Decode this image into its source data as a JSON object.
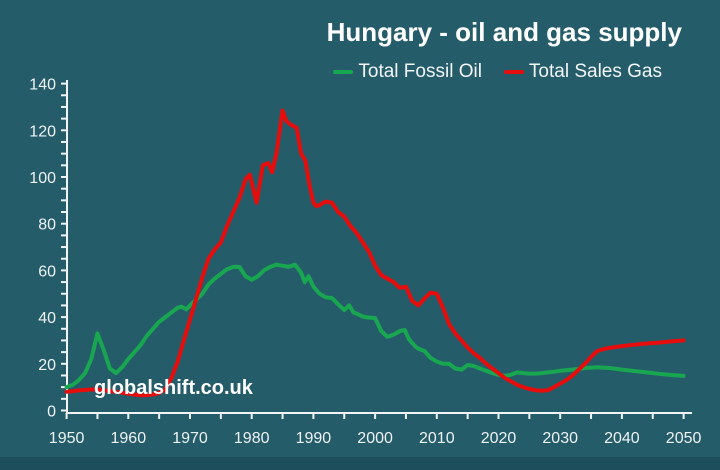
{
  "header": {
    "title": "Hungary - oil and gas supply"
  },
  "watermark": {
    "text": "globalshift.co.uk"
  },
  "colors": {
    "background": "#255c6a",
    "bottom_band": "#1d4e5c",
    "axis": "#f2f5f5",
    "text": "#ffffff",
    "green": "#18a750",
    "red": "#e60d0d"
  },
  "chart_data": {
    "type": "line",
    "title": "Hungary - oil and gas supply",
    "xlabel": "",
    "ylabel": "",
    "xlim": [
      1950,
      2050
    ],
    "ylim": [
      0,
      140
    ],
    "x_ticks": [
      1950,
      1960,
      1970,
      1980,
      1990,
      2000,
      2010,
      2020,
      2030,
      2040,
      2050
    ],
    "x_minor_step": 5,
    "y_ticks": [
      0,
      20,
      40,
      60,
      80,
      100,
      120,
      140
    ],
    "y_minor_step": 5,
    "grid": false,
    "legend_position": "top-right",
    "series": [
      {
        "name": "Total Fossil Oil",
        "color": "#18a750",
        "points": [
          [
            1950,
            10
          ],
          [
            1951,
            11
          ],
          [
            1952,
            13
          ],
          [
            1953,
            16
          ],
          [
            1954,
            22
          ],
          [
            1955,
            33
          ],
          [
            1956,
            26
          ],
          [
            1957,
            18
          ],
          [
            1958,
            16
          ],
          [
            1959,
            18.5
          ],
          [
            1960,
            22
          ],
          [
            1961,
            25
          ],
          [
            1962,
            28
          ],
          [
            1963,
            32
          ],
          [
            1964,
            35
          ],
          [
            1965,
            38
          ],
          [
            1966,
            40
          ],
          [
            1967,
            42
          ],
          [
            1968,
            44
          ],
          [
            1968.6,
            44.5
          ],
          [
            1969.4,
            43.3
          ],
          [
            1970,
            45
          ],
          [
            1971,
            47.5
          ],
          [
            1972,
            50
          ],
          [
            1973,
            54
          ],
          [
            1974,
            56.5
          ],
          [
            1975,
            58.5
          ],
          [
            1976,
            60.5
          ],
          [
            1977,
            61.5
          ],
          [
            1978,
            61.5
          ],
          [
            1979,
            57.5
          ],
          [
            1980,
            56
          ],
          [
            1981,
            57.5
          ],
          [
            1982,
            60
          ],
          [
            1983,
            61.5
          ],
          [
            1984,
            62.5
          ],
          [
            1985,
            62
          ],
          [
            1986,
            61.5
          ],
          [
            1987,
            62.5
          ],
          [
            1988,
            59
          ],
          [
            1988.6,
            55
          ],
          [
            1989.2,
            57.5
          ],
          [
            1990,
            53
          ],
          [
            1991,
            50
          ],
          [
            1992,
            48.5
          ],
          [
            1993,
            48.2
          ],
          [
            1994,
            45.5
          ],
          [
            1995,
            43
          ],
          [
            1995.8,
            45
          ],
          [
            1996.5,
            42
          ],
          [
            1997,
            41.5
          ],
          [
            1998,
            40.2
          ],
          [
            1999,
            39.8
          ],
          [
            2000,
            39.6
          ],
          [
            2001,
            34
          ],
          [
            2002,
            31.5
          ],
          [
            2003,
            32.5
          ],
          [
            2004,
            34
          ],
          [
            2004.8,
            34.5
          ],
          [
            2005.5,
            30.5
          ],
          [
            2006.5,
            27.5
          ],
          [
            2007,
            26.5
          ],
          [
            2008,
            25.5
          ],
          [
            2009,
            22.5
          ],
          [
            2010,
            21
          ],
          [
            2011,
            20
          ],
          [
            2012,
            20
          ],
          [
            2013,
            18
          ],
          [
            2014,
            17.5
          ],
          [
            2015,
            19.5
          ],
          [
            2016,
            19
          ],
          [
            2017,
            18
          ],
          [
            2018,
            17
          ],
          [
            2019,
            16
          ],
          [
            2020,
            15.3
          ],
          [
            2021,
            14.8
          ],
          [
            2022,
            15.3
          ],
          [
            2023,
            16.3
          ],
          [
            2024,
            16
          ],
          [
            2025,
            15.8
          ],
          [
            2026,
            15.8
          ],
          [
            2027,
            16
          ],
          [
            2028,
            16.3
          ],
          [
            2029,
            16.6
          ],
          [
            2030,
            17
          ],
          [
            2032,
            17.5
          ],
          [
            2034,
            18.2
          ],
          [
            2036,
            18.5
          ],
          [
            2038,
            18.2
          ],
          [
            2040,
            17.5
          ],
          [
            2042,
            16.9
          ],
          [
            2044,
            16.3
          ],
          [
            2046,
            15.7
          ],
          [
            2048,
            15.2
          ],
          [
            2050,
            14.8
          ]
        ]
      },
      {
        "name": "Total Sales Gas",
        "color": "#e60d0d",
        "points": [
          [
            1950,
            8
          ],
          [
            1951,
            8.3
          ],
          [
            1952,
            8.6
          ],
          [
            1953,
            8.8
          ],
          [
            1954,
            9
          ],
          [
            1955,
            9
          ],
          [
            1956,
            8.7
          ],
          [
            1957,
            8.3
          ],
          [
            1958,
            8
          ],
          [
            1959,
            7.6
          ],
          [
            1960,
            7.2
          ],
          [
            1961,
            6.8
          ],
          [
            1962,
            6.5
          ],
          [
            1963,
            6.6
          ],
          [
            1964,
            6.9
          ],
          [
            1965,
            7.5
          ],
          [
            1966,
            9
          ],
          [
            1967,
            14
          ],
          [
            1968,
            21
          ],
          [
            1969,
            30
          ],
          [
            1970,
            39
          ],
          [
            1971,
            48
          ],
          [
            1972,
            57
          ],
          [
            1973,
            65
          ],
          [
            1974,
            69
          ],
          [
            1975,
            72
          ],
          [
            1976,
            79
          ],
          [
            1977,
            85
          ],
          [
            1978,
            91
          ],
          [
            1979,
            99
          ],
          [
            1979.7,
            101
          ],
          [
            1980.8,
            89
          ],
          [
            1981.8,
            105
          ],
          [
            1982.7,
            106
          ],
          [
            1983.3,
            102
          ],
          [
            1984,
            110
          ],
          [
            1985,
            128.5
          ],
          [
            1985.6,
            124
          ],
          [
            1986.3,
            122.5
          ],
          [
            1987.3,
            121
          ],
          [
            1988,
            110
          ],
          [
            1988.7,
            107
          ],
          [
            1989.4,
            96
          ],
          [
            1990,
            89
          ],
          [
            1990.5,
            87.5
          ],
          [
            1991,
            88
          ],
          [
            1992,
            89.5
          ],
          [
            1993,
            89
          ],
          [
            1994,
            85
          ],
          [
            1995,
            83
          ],
          [
            1996,
            79
          ],
          [
            1997,
            76
          ],
          [
            1998,
            72
          ],
          [
            1999,
            68
          ],
          [
            2000,
            62
          ],
          [
            2001,
            58
          ],
          [
            2002,
            56.5
          ],
          [
            2003,
            55
          ],
          [
            2004,
            52.5
          ],
          [
            2005,
            53
          ],
          [
            2006,
            47
          ],
          [
            2007,
            45
          ],
          [
            2008,
            48
          ],
          [
            2009,
            50.5
          ],
          [
            2010,
            50
          ],
          [
            2011,
            44
          ],
          [
            2012,
            37
          ],
          [
            2013,
            33
          ],
          [
            2014,
            30
          ],
          [
            2015,
            27
          ],
          [
            2016,
            24.5
          ],
          [
            2017,
            22.5
          ],
          [
            2018,
            20
          ],
          [
            2019,
            18
          ],
          [
            2020,
            16
          ],
          [
            2021,
            14
          ],
          [
            2022,
            12.5
          ],
          [
            2023,
            11
          ],
          [
            2024,
            10
          ],
          [
            2025,
            9.2
          ],
          [
            2026,
            8.7
          ],
          [
            2027,
            8.5
          ],
          [
            2028,
            8.7
          ],
          [
            2029,
            10
          ],
          [
            2030,
            11.5
          ],
          [
            2031,
            13
          ],
          [
            2032,
            15
          ],
          [
            2033,
            17.5
          ],
          [
            2034,
            20
          ],
          [
            2035,
            23
          ],
          [
            2036,
            25.5
          ],
          [
            2037,
            26.3
          ],
          [
            2038,
            26.8
          ],
          [
            2039,
            27.2
          ],
          [
            2040,
            27.6
          ],
          [
            2042,
            28.2
          ],
          [
            2044,
            28.7
          ],
          [
            2046,
            29.1
          ],
          [
            2048,
            29.6
          ],
          [
            2050,
            30
          ]
        ]
      }
    ]
  }
}
